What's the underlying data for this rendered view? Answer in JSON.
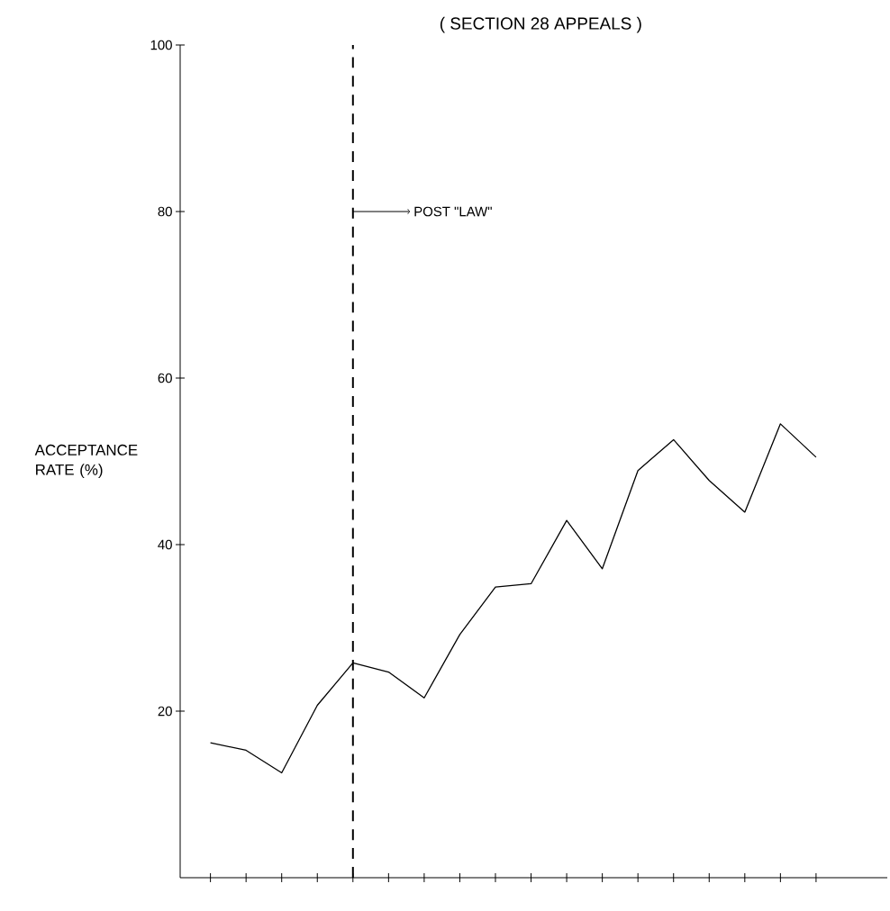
{
  "chart_data": {
    "type": "line",
    "title": "( SECTION 28 APPEALS )",
    "ylabel": "ACCEPTANCE RATE (%)",
    "categories": [
      null,
      null,
      null,
      null,
      null,
      null,
      null,
      null,
      null,
      null,
      null,
      null,
      null,
      null,
      null,
      null,
      null,
      null
    ],
    "series": [
      {
        "color": "#000000",
        "values": [
          16.2,
          15.3,
          12.6,
          20.7,
          25.8,
          24.7,
          21.6,
          29.2,
          34.9,
          35.3,
          42.9,
          37.1,
          48.9,
          52.6,
          47.7,
          43.9,
          54.5,
          50.5
        ]
      }
    ],
    "ylim": [
      0,
      100
    ],
    "yticks": [
      20,
      40,
      60,
      80,
      100
    ],
    "tick_labels": "y",
    "annotations": [
      "POST \"LAW\""
    ],
    "grid": false,
    "marker": "none",
    "line_style": "solid"
  }
}
